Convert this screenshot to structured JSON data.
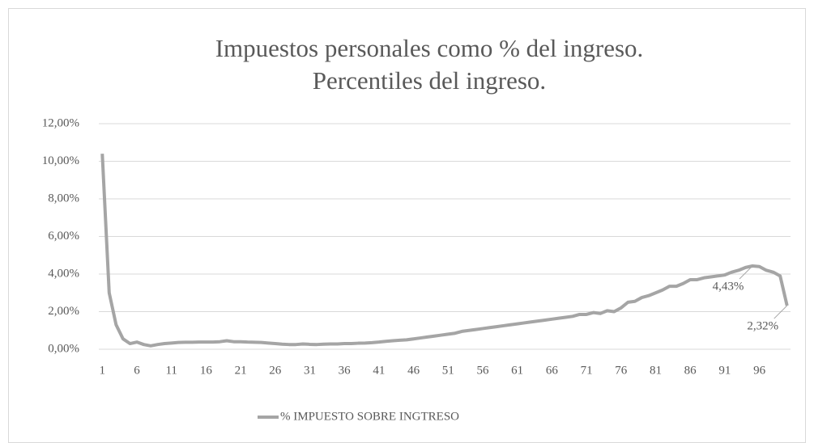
{
  "chart_data": {
    "type": "line",
    "title": [
      "Impuestos personales como % del ingreso.",
      "Percentiles del ingreso."
    ],
    "categories": [
      "1",
      null,
      null,
      null,
      null,
      "6",
      null,
      null,
      null,
      null,
      "11",
      null,
      null,
      null,
      null,
      "16",
      null,
      null,
      null,
      null,
      "21",
      null,
      null,
      null,
      null,
      "26",
      null,
      null,
      null,
      null,
      "31",
      null,
      null,
      null,
      null,
      "36",
      null,
      null,
      null,
      null,
      "41",
      null,
      null,
      null,
      null,
      "46",
      null,
      null,
      null,
      null,
      "51",
      null,
      null,
      null,
      null,
      "56",
      null,
      null,
      null,
      null,
      "61",
      null,
      null,
      null,
      null,
      "66",
      null,
      null,
      null,
      null,
      "71",
      null,
      null,
      null,
      null,
      "76",
      null,
      null,
      null,
      null,
      "81",
      null,
      null,
      null,
      null,
      "86",
      null,
      null,
      null,
      null,
      "91",
      null,
      null,
      null,
      null,
      "96",
      null,
      null,
      null,
      null
    ],
    "series": [
      {
        "name": "% IMPUESTO SOBRE INGTRESO",
        "color": "#a5a5a5",
        "values": [
          10.4,
          3.0,
          1.3,
          0.55,
          0.3,
          0.38,
          0.25,
          0.18,
          0.25,
          0.3,
          0.33,
          0.36,
          0.37,
          0.37,
          0.38,
          0.38,
          0.38,
          0.4,
          0.45,
          0.4,
          0.4,
          0.38,
          0.37,
          0.36,
          0.33,
          0.3,
          0.27,
          0.25,
          0.25,
          0.28,
          0.26,
          0.25,
          0.27,
          0.28,
          0.28,
          0.3,
          0.3,
          0.32,
          0.33,
          0.35,
          0.38,
          0.42,
          0.45,
          0.48,
          0.5,
          0.55,
          0.6,
          0.65,
          0.7,
          0.75,
          0.8,
          0.85,
          0.95,
          1.0,
          1.05,
          1.1,
          1.15,
          1.2,
          1.25,
          1.3,
          1.35,
          1.4,
          1.45,
          1.5,
          1.55,
          1.6,
          1.65,
          1.7,
          1.75,
          1.85,
          1.85,
          1.95,
          1.9,
          2.05,
          2.0,
          2.2,
          2.5,
          2.55,
          2.75,
          2.85,
          3.0,
          3.15,
          3.35,
          3.35,
          3.5,
          3.7,
          3.7,
          3.8,
          3.85,
          3.9,
          3.95,
          4.1,
          4.2,
          4.35,
          4.43,
          4.4,
          4.2,
          4.1,
          3.9,
          2.32
        ],
        "value_labels": [
          null,
          null,
          null,
          null,
          null,
          null,
          null,
          null,
          null,
          null,
          null,
          null,
          null,
          null,
          null,
          null,
          null,
          null,
          null,
          null,
          null,
          null,
          null,
          null,
          null,
          null,
          null,
          null,
          null,
          null,
          null,
          null,
          null,
          null,
          null,
          null,
          null,
          null,
          null,
          null,
          null,
          null,
          null,
          null,
          null,
          null,
          null,
          null,
          null,
          null,
          null,
          null,
          null,
          null,
          null,
          null,
          null,
          null,
          null,
          null,
          null,
          null,
          null,
          null,
          null,
          null,
          null,
          null,
          null,
          null,
          null,
          null,
          null,
          null,
          null,
          null,
          null,
          null,
          null,
          null,
          null,
          null,
          null,
          null,
          null,
          null,
          null,
          null,
          null,
          null,
          null,
          null,
          null,
          null,
          "4,43%",
          null,
          null,
          null,
          null,
          "2,32%"
        ]
      }
    ],
    "ylim": [
      0,
      12
    ],
    "yticks": [
      {
        "value": 0,
        "label": "0,00%"
      },
      {
        "value": 2,
        "label": "2,00%"
      },
      {
        "value": 4,
        "label": "4,00%"
      },
      {
        "value": 6,
        "label": "6,00%"
      },
      {
        "value": 8,
        "label": "8,00%"
      },
      {
        "value": 10,
        "label": "10,00%"
      },
      {
        "value": 12,
        "label": "12,00%"
      }
    ],
    "grid": true,
    "legend": "bottom"
  }
}
